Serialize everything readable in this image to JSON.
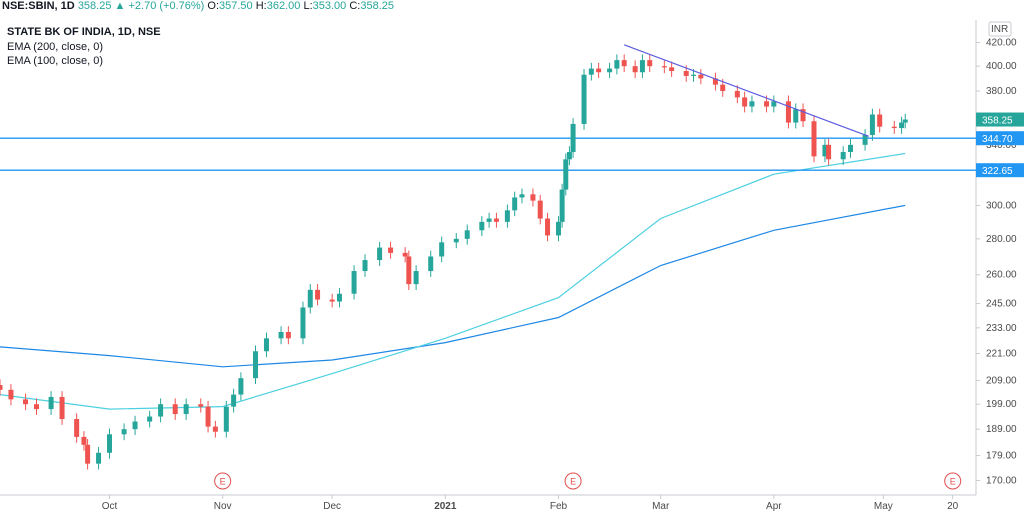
{
  "header": {
    "symbol": "NSE:SBIN, 1D",
    "last": "358.25",
    "change": "+2.70 (+0.76%)",
    "open_label": "O:",
    "open": "357.50",
    "high_label": "H:",
    "high": "362.00",
    "low_label": "L:",
    "low": "353.00",
    "close_label": "C:",
    "close": "358.25"
  },
  "legend": {
    "title": "STATE BK OF INDIA, 1D, NSE",
    "ema200": "EMA (200, close, 0)",
    "ema100": "EMA (100, close, 0)"
  },
  "price_scale": {
    "currency": "INR",
    "last_price_tag": "358.25",
    "level_tags": [
      "344.70",
      "322.65"
    ]
  },
  "colors": {
    "up": "#26a69a",
    "down": "#ef5350",
    "ema200": "#1e88e5",
    "ema100": "#4dd0e1",
    "hline": "#2196f3",
    "trendline": "#5c5ce0",
    "earnings": "#e04f4f"
  },
  "chart_data": {
    "type": "candlestick",
    "title": "STATE BK OF INDIA, 1D, NSE",
    "y_scale": "log",
    "ylim": [
      166,
      440
    ],
    "y_ticks": [
      170,
      179,
      189,
      199,
      209,
      221,
      233,
      245,
      260,
      280,
      300,
      320,
      340,
      360,
      380,
      400,
      420
    ],
    "y_tick_labels": [
      "170.00",
      "179.00",
      "189.00",
      "199.00",
      "209.00",
      "221.00",
      "233.00",
      "245.00",
      "260.00",
      "280.00",
      "300.00",
      "320.00",
      "340.00",
      "360.00",
      "380.00",
      "400.00",
      "420.00"
    ],
    "x_range": [
      "2020-09-01",
      "2021-05-22"
    ],
    "x_ticks": [
      {
        "date": "2020-10-01",
        "label": "Oct"
      },
      {
        "date": "2020-11-01",
        "label": "Nov"
      },
      {
        "date": "2020-12-01",
        "label": "Dec"
      },
      {
        "date": "2021-01-01",
        "label": "2021"
      },
      {
        "date": "2021-02-01",
        "label": "Feb"
      },
      {
        "date": "2021-03-01",
        "label": "Mar"
      },
      {
        "date": "2021-04-01",
        "label": "Apr"
      },
      {
        "date": "2021-05-01",
        "label": "May"
      },
      {
        "date": "2021-05-20",
        "label": "20"
      }
    ],
    "closes": [
      {
        "date": "2020-09-01",
        "close": 205.0
      },
      {
        "date": "2020-09-04",
        "close": 201.0
      },
      {
        "date": "2020-09-08",
        "close": 199.0
      },
      {
        "date": "2020-09-11",
        "close": 197.0
      },
      {
        "date": "2020-09-15",
        "close": 202.0
      },
      {
        "date": "2020-09-18",
        "close": 193.0
      },
      {
        "date": "2020-09-22",
        "close": 186.0
      },
      {
        "date": "2020-09-24",
        "close": 183.0
      },
      {
        "date": "2020-09-25",
        "close": 176.0
      },
      {
        "date": "2020-09-28",
        "close": 180.0
      },
      {
        "date": "2020-10-01",
        "close": 187.0
      },
      {
        "date": "2020-10-05",
        "close": 189.0
      },
      {
        "date": "2020-10-08",
        "close": 192.0
      },
      {
        "date": "2020-10-12",
        "close": 194.0
      },
      {
        "date": "2020-10-15",
        "close": 199.0
      },
      {
        "date": "2020-10-19",
        "close": 195.0
      },
      {
        "date": "2020-10-22",
        "close": 199.0
      },
      {
        "date": "2020-10-26",
        "close": 198.0
      },
      {
        "date": "2020-10-28",
        "close": 190.0
      },
      {
        "date": "2020-10-30",
        "close": 188.0
      },
      {
        "date": "2020-11-02",
        "close": 198.0
      },
      {
        "date": "2020-11-04",
        "close": 203.0
      },
      {
        "date": "2020-11-06",
        "close": 210.0
      },
      {
        "date": "2020-11-10",
        "close": 222.0
      },
      {
        "date": "2020-11-13",
        "close": 228.0
      },
      {
        "date": "2020-11-17",
        "close": 231.0
      },
      {
        "date": "2020-11-19",
        "close": 228.0
      },
      {
        "date": "2020-11-23",
        "close": 243.0
      },
      {
        "date": "2020-11-25",
        "close": 252.0
      },
      {
        "date": "2020-11-27",
        "close": 247.0
      },
      {
        "date": "2020-12-01",
        "close": 246.0
      },
      {
        "date": "2020-12-03",
        "close": 250.0
      },
      {
        "date": "2020-12-07",
        "close": 262.0
      },
      {
        "date": "2020-12-10",
        "close": 268.0
      },
      {
        "date": "2020-12-14",
        "close": 275.0
      },
      {
        "date": "2020-12-17",
        "close": 272.0
      },
      {
        "date": "2020-12-21",
        "close": 270.0
      },
      {
        "date": "2020-12-22",
        "close": 255.0
      },
      {
        "date": "2020-12-24",
        "close": 262.0
      },
      {
        "date": "2020-12-28",
        "close": 270.0
      },
      {
        "date": "2020-12-31",
        "close": 278.0
      },
      {
        "date": "2021-01-04",
        "close": 280.0
      },
      {
        "date": "2021-01-07",
        "close": 285.0
      },
      {
        "date": "2021-01-11",
        "close": 290.0
      },
      {
        "date": "2021-01-13",
        "close": 292.0
      },
      {
        "date": "2021-01-15",
        "close": 290.0
      },
      {
        "date": "2021-01-18",
        "close": 297.0
      },
      {
        "date": "2021-01-20",
        "close": 305.0
      },
      {
        "date": "2021-01-22",
        "close": 307.0
      },
      {
        "date": "2021-01-25",
        "close": 303.0
      },
      {
        "date": "2021-01-27",
        "close": 292.0
      },
      {
        "date": "2021-01-29",
        "close": 282.0
      },
      {
        "date": "2021-02-01",
        "close": 290.0
      },
      {
        "date": "2021-02-02",
        "close": 310.0
      },
      {
        "date": "2021-02-03",
        "close": 330.0
      },
      {
        "date": "2021-02-04",
        "close": 335.0
      },
      {
        "date": "2021-02-05",
        "close": 355.0
      },
      {
        "date": "2021-02-08",
        "close": 393.0
      },
      {
        "date": "2021-02-10",
        "close": 398.0
      },
      {
        "date": "2021-02-12",
        "close": 395.0
      },
      {
        "date": "2021-02-15",
        "close": 398.0
      },
      {
        "date": "2021-02-17",
        "close": 405.0
      },
      {
        "date": "2021-02-19",
        "close": 400.0
      },
      {
        "date": "2021-02-22",
        "close": 395.0
      },
      {
        "date": "2021-02-24",
        "close": 405.0
      },
      {
        "date": "2021-02-26",
        "close": 400.0
      },
      {
        "date": "2021-03-02",
        "close": 399.0
      },
      {
        "date": "2021-03-04",
        "close": 396.0
      },
      {
        "date": "2021-03-08",
        "close": 392.0
      },
      {
        "date": "2021-03-10",
        "close": 393.0
      },
      {
        "date": "2021-03-12",
        "close": 390.0
      },
      {
        "date": "2021-03-16",
        "close": 385.0
      },
      {
        "date": "2021-03-18",
        "close": 380.0
      },
      {
        "date": "2021-03-22",
        "close": 375.0
      },
      {
        "date": "2021-03-24",
        "close": 368.0
      },
      {
        "date": "2021-03-26",
        "close": 372.0
      },
      {
        "date": "2021-03-30",
        "close": 368.0
      },
      {
        "date": "2021-04-01",
        "close": 372.0
      },
      {
        "date": "2021-04-05",
        "close": 356.0
      },
      {
        "date": "2021-04-07",
        "close": 366.0
      },
      {
        "date": "2021-04-09",
        "close": 357.0
      },
      {
        "date": "2021-04-12",
        "close": 332.0
      },
      {
        "date": "2021-04-15",
        "close": 340.0
      },
      {
        "date": "2021-04-16",
        "close": 330.0
      },
      {
        "date": "2021-04-20",
        "close": 335.0
      },
      {
        "date": "2021-04-22",
        "close": 340.0
      },
      {
        "date": "2021-04-26",
        "close": 347.0
      },
      {
        "date": "2021-04-28",
        "close": 362.0
      },
      {
        "date": "2021-04-30",
        "close": 353.0
      },
      {
        "date": "2021-05-04",
        "close": 352.0
      },
      {
        "date": "2021-05-06",
        "close": 356.0
      },
      {
        "date": "2021-05-07",
        "close": 358.25
      }
    ],
    "series": [
      {
        "name": "EMA (200, close, 0)",
        "points": [
          {
            "date": "2020-09-01",
            "value": 224
          },
          {
            "date": "2020-10-01",
            "value": 220
          },
          {
            "date": "2020-11-01",
            "value": 215
          },
          {
            "date": "2020-12-01",
            "value": 218
          },
          {
            "date": "2021-01-01",
            "value": 226
          },
          {
            "date": "2021-02-01",
            "value": 238
          },
          {
            "date": "2021-03-01",
            "value": 265
          },
          {
            "date": "2021-04-01",
            "value": 285
          },
          {
            "date": "2021-05-07",
            "value": 300
          }
        ]
      },
      {
        "name": "EMA (100, close, 0)",
        "points": [
          {
            "date": "2020-09-01",
            "value": 203
          },
          {
            "date": "2020-10-01",
            "value": 197
          },
          {
            "date": "2020-11-01",
            "value": 198
          },
          {
            "date": "2020-12-01",
            "value": 212
          },
          {
            "date": "2021-01-01",
            "value": 228
          },
          {
            "date": "2021-02-01",
            "value": 248
          },
          {
            "date": "2021-03-01",
            "value": 292
          },
          {
            "date": "2021-04-01",
            "value": 320
          },
          {
            "date": "2021-05-07",
            "value": 334
          }
        ]
      }
    ],
    "horizontal_levels": [
      344.7,
      322.65
    ],
    "trendline": [
      {
        "date": "2021-02-19",
        "value": 418
      },
      {
        "date": "2021-04-27",
        "value": 346
      }
    ],
    "earnings_markers": [
      "2020-11-01",
      "2021-02-05",
      "2021-05-20"
    ]
  }
}
